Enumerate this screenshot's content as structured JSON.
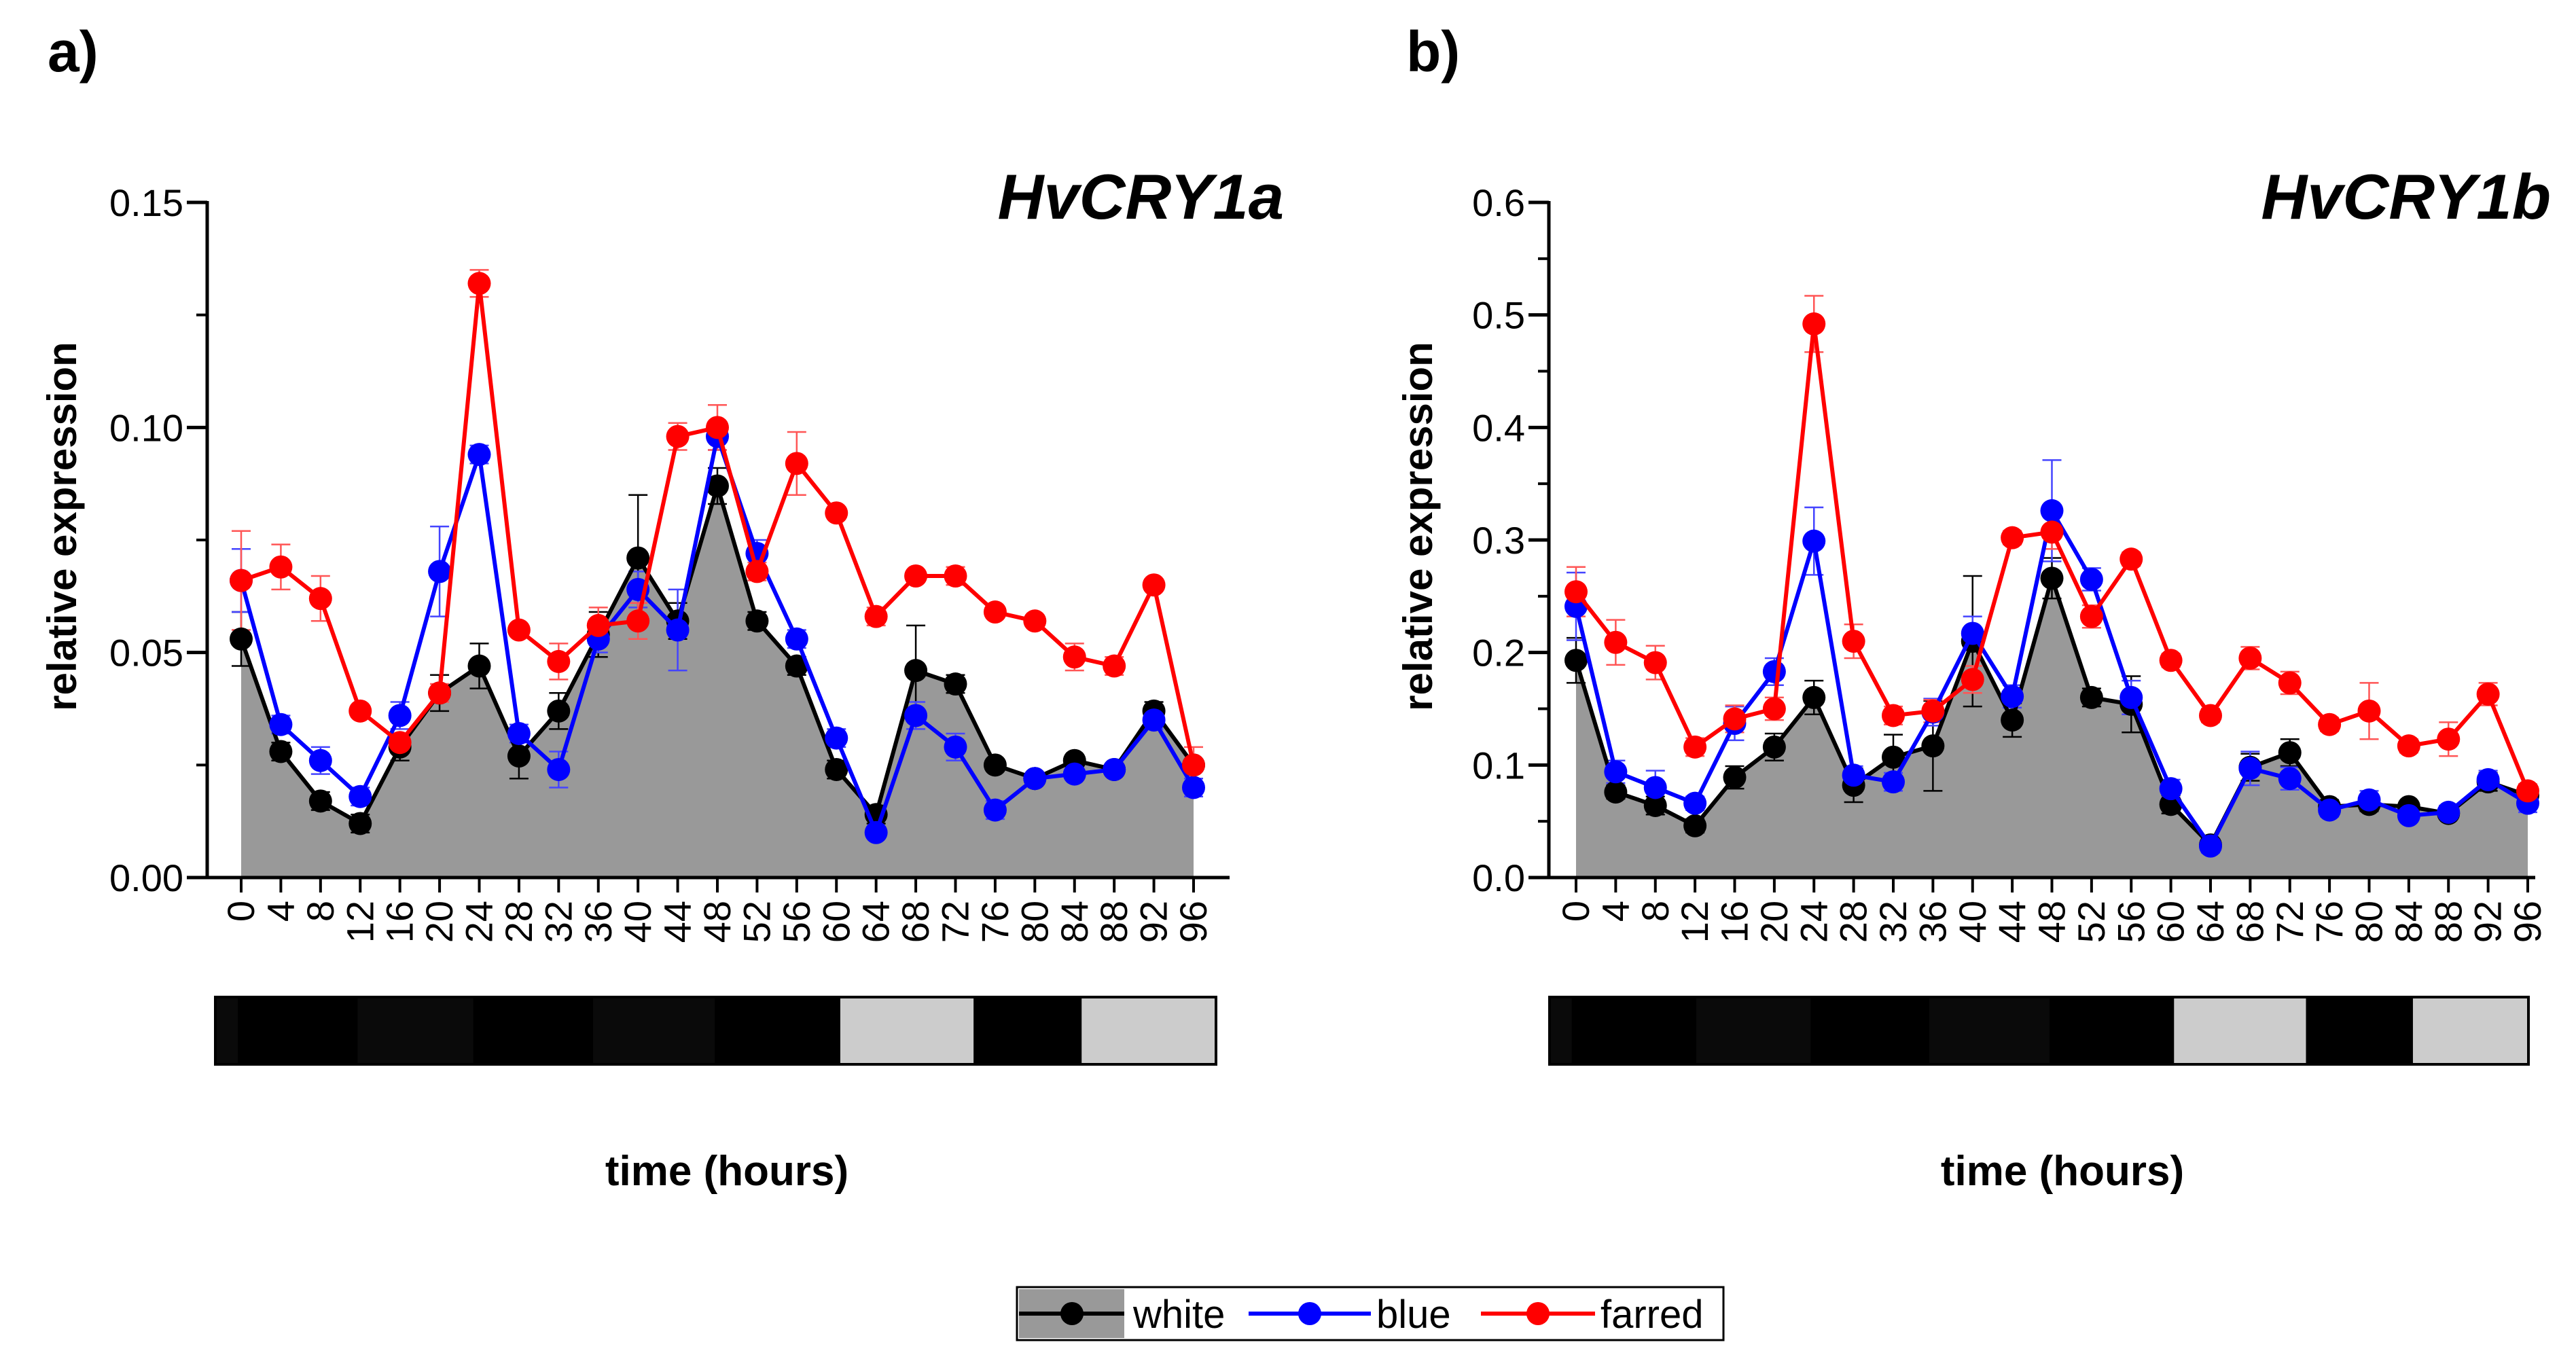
{
  "colors": {
    "white": "#000000",
    "blue": "#0000ff",
    "farred": "#ff0000",
    "area_fill": "#999999",
    "light_gray": "#cccccc",
    "dark": "#0a0a0a"
  },
  "legend": {
    "placement": "bottom-center",
    "entries": [
      "white",
      "blue",
      "farred"
    ]
  },
  "chart_data": [
    {
      "type": "line",
      "panel_label": "a)",
      "title": "HvCRY1a",
      "xlabel": "time (hours)",
      "ylabel": "relative expression",
      "x": [
        0,
        4,
        8,
        12,
        16,
        20,
        24,
        28,
        32,
        36,
        40,
        44,
        48,
        52,
        56,
        60,
        64,
        68,
        72,
        76,
        80,
        84,
        88,
        92,
        96
      ],
      "xlim": [
        0,
        96
      ],
      "ylim": [
        0,
        0.15
      ],
      "yticks": [
        "0.00",
        "0.05",
        "0.10",
        "0.15"
      ],
      "grid": false,
      "area_series": "white",
      "series": [
        {
          "name": "white",
          "values": [
            0.053,
            0.028,
            0.017,
            0.012,
            0.029,
            0.041,
            0.047,
            0.027,
            0.037,
            0.054,
            0.071,
            0.057,
            0.087,
            0.057,
            0.047,
            0.024,
            0.014,
            0.046,
            0.043,
            0.025,
            0.022,
            0.026,
            0.024,
            0.037,
            0.025
          ],
          "errors": [
            0.006,
            0.002,
            0.002,
            0.002,
            0.003,
            0.004,
            0.005,
            0.005,
            0.004,
            0.005,
            0.014,
            0.004,
            0.004,
            0.002,
            0.002,
            0.002,
            0.002,
            0.01,
            0.002,
            0.001,
            0.001,
            0.001,
            0.001,
            0.002,
            0.001
          ]
        },
        {
          "name": "blue",
          "values": [
            0.066,
            0.034,
            0.026,
            0.018,
            0.036,
            0.068,
            0.094,
            0.032,
            0.024,
            0.053,
            0.064,
            0.055,
            0.098,
            0.072,
            0.053,
            0.031,
            0.01,
            0.036,
            0.029,
            0.015,
            0.022,
            0.023,
            0.024,
            0.035,
            0.02
          ],
          "errors": [
            0.007,
            0.002,
            0.003,
            0.002,
            0.003,
            0.01,
            0.002,
            0.002,
            0.004,
            0.003,
            0.004,
            0.009,
            0.003,
            0.003,
            0.002,
            0.002,
            0.001,
            0.003,
            0.003,
            0.002,
            0.001,
            0.001,
            0.001,
            0.002,
            0.002
          ]
        },
        {
          "name": "farred",
          "values": [
            0.066,
            0.069,
            0.062,
            0.037,
            0.03,
            0.041,
            0.132,
            0.055,
            0.048,
            0.056,
            0.057,
            0.098,
            0.1,
            0.068,
            0.092,
            0.081,
            0.058,
            0.067,
            0.067,
            0.059,
            0.057,
            0.049,
            0.047,
            0.065,
            0.025
          ],
          "errors": [
            0.011,
            0.005,
            0.005,
            0.001,
            0.002,
            0.002,
            0.003,
            0.001,
            0.004,
            0.004,
            0.004,
            0.003,
            0.005,
            0.002,
            0.007,
            0.001,
            0.002,
            0.001,
            0.002,
            0.001,
            0.001,
            0.003,
            0.002,
            0.001,
            0.004
          ]
        }
      ]
    },
    {
      "type": "line",
      "panel_label": "b)",
      "title": "HvCRY1b",
      "xlabel": "time (hours)",
      "ylabel": "relative expression",
      "x": [
        0,
        4,
        8,
        12,
        16,
        20,
        24,
        28,
        32,
        36,
        40,
        44,
        48,
        52,
        56,
        60,
        64,
        68,
        72,
        76,
        80,
        84,
        88,
        92,
        96
      ],
      "xlim": [
        0,
        96
      ],
      "ylim": [
        0,
        0.6
      ],
      "yticks": [
        "0.0",
        "0.1",
        "0.2",
        "0.3",
        "0.4",
        "0.5",
        "0.6"
      ],
      "grid": false,
      "area_series": "white",
      "series": [
        {
          "name": "white",
          "values": [
            0.193,
            0.076,
            0.064,
            0.046,
            0.089,
            0.116,
            0.16,
            0.082,
            0.107,
            0.117,
            0.21,
            0.14,
            0.266,
            0.16,
            0.154,
            0.065,
            0.029,
            0.098,
            0.111,
            0.063,
            0.065,
            0.063,
            0.057,
            0.085,
            0.073
          ],
          "errors": [
            0.02,
            0.006,
            0.008,
            0.006,
            0.01,
            0.012,
            0.015,
            0.015,
            0.02,
            0.04,
            0.058,
            0.015,
            0.018,
            0.008,
            0.025,
            0.008,
            0.004,
            0.012,
            0.012,
            0.006,
            0.006,
            0.005,
            0.005,
            0.008,
            0.006
          ]
        },
        {
          "name": "blue",
          "values": [
            0.241,
            0.094,
            0.08,
            0.066,
            0.137,
            0.183,
            0.299,
            0.091,
            0.085,
            0.147,
            0.217,
            0.161,
            0.326,
            0.265,
            0.16,
            0.079,
            0.028,
            0.097,
            0.088,
            0.06,
            0.069,
            0.055,
            0.058,
            0.087,
            0.066
          ],
          "errors": [
            0.03,
            0.01,
            0.015,
            0.006,
            0.015,
            0.012,
            0.03,
            0.008,
            0.008,
            0.012,
            0.015,
            0.01,
            0.045,
            0.01,
            0.015,
            0.008,
            0.006,
            0.015,
            0.01,
            0.006,
            0.008,
            0.005,
            0.006,
            0.008,
            0.008
          ]
        },
        {
          "name": "farred",
          "values": [
            0.254,
            0.209,
            0.191,
            0.116,
            0.141,
            0.15,
            0.492,
            0.21,
            0.144,
            0.148,
            0.176,
            0.302,
            0.307,
            0.232,
            0.283,
            0.193,
            0.144,
            0.195,
            0.173,
            0.136,
            0.148,
            0.117,
            0.123,
            0.163,
            0.077
          ],
          "errors": [
            0.022,
            0.02,
            0.015,
            0.008,
            0.012,
            0.01,
            0.025,
            0.015,
            0.008,
            0.01,
            0.012,
            0.006,
            0.015,
            0.01,
            0.006,
            0.006,
            0.006,
            0.01,
            0.01,
            0.006,
            0.025,
            0.006,
            0.015,
            0.01,
            0.006
          ]
        }
      ]
    }
  ],
  "light_bars": [
    [
      {
        "fill": "dark",
        "hours": 2
      },
      {
        "fill": "white",
        "hours": 10
      },
      {
        "fill": "dark",
        "hours": 10
      },
      {
        "fill": "white",
        "hours": 10
      },
      {
        "fill": "dark",
        "hours": 10.5
      },
      {
        "fill": "white",
        "hours": 10.5
      },
      {
        "fill": "light_gray",
        "hours": 11.5
      },
      {
        "fill": "white",
        "hours": 9
      },
      {
        "fill": "light_gray",
        "hours": 11.5
      }
    ],
    [
      {
        "fill": "dark",
        "hours": 2
      },
      {
        "fill": "white",
        "hours": 10.5
      },
      {
        "fill": "dark",
        "hours": 10
      },
      {
        "fill": "white",
        "hours": 10
      },
      {
        "fill": "dark",
        "hours": 10.5
      },
      {
        "fill": "white",
        "hours": 10.5
      },
      {
        "fill": "light_gray",
        "hours": 11.5
      },
      {
        "fill": "white",
        "hours": 9
      },
      {
        "fill": "light_gray",
        "hours": 10
      }
    ]
  ]
}
